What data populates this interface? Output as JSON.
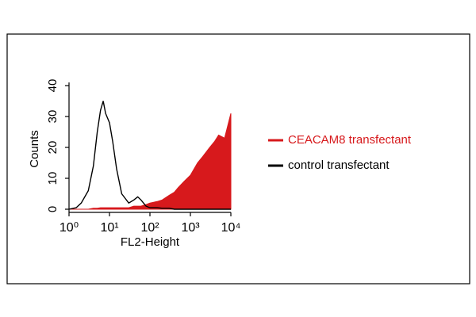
{
  "chart_data": {
    "type": "area",
    "xlabel": "FL2-Height",
    "ylabel": "Counts",
    "xscale": "log",
    "xlim": [
      1,
      10000
    ],
    "xticks": [
      {
        "value": 1,
        "label": "10⁰"
      },
      {
        "value": 10,
        "label": "10¹"
      },
      {
        "value": 100,
        "label": "10²"
      },
      {
        "value": 1000,
        "label": "10³"
      },
      {
        "value": 10000,
        "label": "10⁴"
      }
    ],
    "ylim": [
      0,
      40
    ],
    "yticks": [
      0,
      10,
      20,
      30,
      40
    ],
    "x": [
      1,
      1.5,
      2,
      3,
      4,
      5,
      6,
      7,
      8,
      10,
      12,
      15,
      20,
      30,
      40,
      50,
      60,
      80,
      100,
      150,
      200,
      300,
      400,
      500,
      700,
      1000,
      1500,
      2000,
      3000,
      4000,
      5000,
      7000,
      10000
    ],
    "series": [
      {
        "name": "CEACAM8 transfectant",
        "color": "#d7191c",
        "style": "filled",
        "values": [
          0,
          0,
          0,
          0,
          0.3,
          0.3,
          0.5,
          0.5,
          0.5,
          0.5,
          0.5,
          0.5,
          0.5,
          0.5,
          1,
          1,
          1,
          1.5,
          2,
          2.5,
          3,
          4.5,
          5.5,
          7,
          9,
          11,
          15,
          17,
          20,
          22,
          24,
          23,
          31
        ]
      },
      {
        "name": "control transfectant",
        "color": "#000000",
        "style": "line",
        "values": [
          0,
          0.5,
          2,
          6,
          14,
          25,
          32,
          35,
          31,
          28,
          22,
          13,
          5,
          2,
          3,
          4,
          3,
          1,
          0.5,
          0.5,
          0.3,
          0.3,
          0,
          0,
          0,
          0,
          0,
          0,
          0,
          0,
          0,
          0,
          0
        ]
      }
    ]
  }
}
